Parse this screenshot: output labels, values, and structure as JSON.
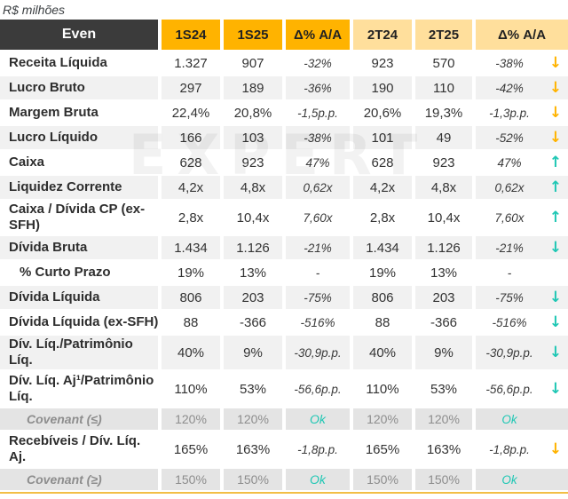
{
  "note": "R$ milhões",
  "watermark": "EXPERT",
  "colors": {
    "header_dark": "#3B3B3B",
    "amber": "#FFB300",
    "amber_light": "#FFDF9C",
    "teal": "#1FC7B4",
    "row_alt_bg": "#F1F1F1",
    "covenant_bg": "#E4E4E4",
    "covenant_text": "#8D8D8D",
    "bottom_border": "#F2BE45"
  },
  "chart_data": {
    "type": "table",
    "title": "R$ milhões",
    "company": "Even",
    "columns": [
      "Even",
      "1S24",
      "1S25",
      "Δ% A/A",
      "2T24",
      "2T25",
      "Δ% A/A"
    ],
    "rows": [
      {
        "label": "Receita Líquida",
        "v1": "1.327",
        "v2": "907",
        "d1": "-32%",
        "v3": "923",
        "v4": "570",
        "d2": "-38%",
        "arrow": "↓",
        "arrow_color": "amber"
      },
      {
        "label": "Lucro Bruto",
        "v1": "297",
        "v2": "189",
        "d1": "-36%",
        "v3": "190",
        "v4": "110",
        "d2": "-42%",
        "arrow": "↓",
        "arrow_color": "amber"
      },
      {
        "label": "Margem Bruta",
        "v1": "22,4%",
        "v2": "20,8%",
        "d1": "-1,5p.p.",
        "v3": "20,6%",
        "v4": "19,3%",
        "d2": "-1,3p.p.",
        "arrow": "↓",
        "arrow_color": "amber"
      },
      {
        "label": "Lucro Líquido",
        "v1": "166",
        "v2": "103",
        "d1": "-38%",
        "v3": "101",
        "v4": "49",
        "d2": "-52%",
        "arrow": "↓",
        "arrow_color": "amber"
      },
      {
        "label": "Caixa",
        "v1": "628",
        "v2": "923",
        "d1": "47%",
        "v3": "628",
        "v4": "923",
        "d2": "47%",
        "arrow": "↑",
        "arrow_color": "teal"
      },
      {
        "label": "Liquidez Corrente",
        "v1": "4,2x",
        "v2": "4,8x",
        "d1": "0,62x",
        "v3": "4,2x",
        "v4": "4,8x",
        "d2": "0,62x",
        "arrow": "↑",
        "arrow_color": "teal"
      },
      {
        "label": "Caixa / Dívida CP (ex-SFH)",
        "v1": "2,8x",
        "v2": "10,4x",
        "d1": "7,60x",
        "v3": "2,8x",
        "v4": "10,4x",
        "d2": "7,60x",
        "arrow": "↑",
        "arrow_color": "teal"
      },
      {
        "label": "Dívida Bruta",
        "v1": "1.434",
        "v2": "1.126",
        "d1": "-21%",
        "v3": "1.434",
        "v4": "1.126",
        "d2": "-21%",
        "arrow": "↓",
        "arrow_color": "teal"
      },
      {
        "label": "% Curto Prazo",
        "v1": "19%",
        "v2": "13%",
        "d1": "-",
        "v3": "19%",
        "v4": "13%",
        "d2": "-",
        "arrow": "",
        "arrow_color": ""
      },
      {
        "label": "Dívida Líquida",
        "v1": "806",
        "v2": "203",
        "d1": "-75%",
        "v3": "806",
        "v4": "203",
        "d2": "-75%",
        "arrow": "↓",
        "arrow_color": "teal"
      },
      {
        "label": "Dívida Líquida (ex-SFH)",
        "v1": "88",
        "v2": "-366",
        "d1": "-516%",
        "v3": "88",
        "v4": "-366",
        "d2": "-516%",
        "arrow": "↓",
        "arrow_color": "teal"
      },
      {
        "label": "Dív. Líq./Patrimônio Líq.",
        "v1": "40%",
        "v2": "9%",
        "d1": "-30,9p.p.",
        "v3": "40%",
        "v4": "9%",
        "d2": "-30,9p.p.",
        "arrow": "↓",
        "arrow_color": "teal"
      },
      {
        "label": "Dív. Líq. Aj¹/Patrimônio Líq.",
        "v1": "110%",
        "v2": "53%",
        "d1": "-56,6p.p.",
        "v3": "110%",
        "v4": "53%",
        "d2": "-56,6p.p.",
        "arrow": "↓",
        "arrow_color": "teal"
      },
      {
        "label": "Covenant (≤)",
        "v1": "120%",
        "v2": "120%",
        "d1": "Ok",
        "v3": "120%",
        "v4": "120%",
        "d2": "Ok",
        "arrow": "",
        "arrow_color": ""
      },
      {
        "label": "Recebíveis / Dív. Líq. Aj.",
        "v1": "165%",
        "v2": "163%",
        "d1": "-1,8p.p.",
        "v3": "165%",
        "v4": "163%",
        "d2": "-1,8p.p.",
        "arrow": "↓",
        "arrow_color": "amber"
      },
      {
        "label": "Covenant (≥)",
        "v1": "150%",
        "v2": "150%",
        "d1": "Ok",
        "v3": "150%",
        "v4": "150%",
        "d2": "Ok",
        "arrow": "",
        "arrow_color": ""
      }
    ]
  }
}
